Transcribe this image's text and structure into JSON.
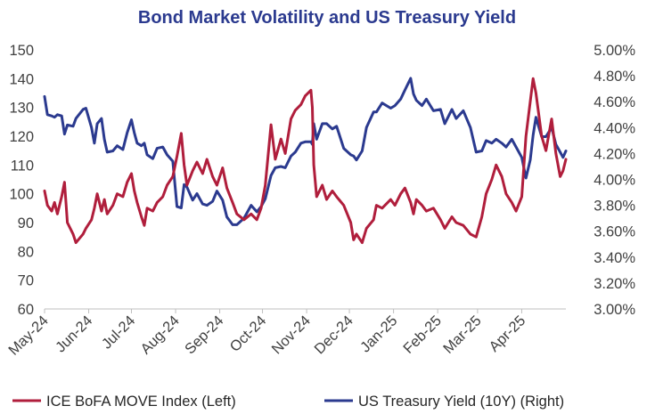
{
  "chart_data": {
    "type": "line",
    "title": "Bond Market Volatility and US Treasury Yield",
    "grid": false,
    "legend_position": "bottom",
    "x_tick_labels": [
      "May-24",
      "Jun-24",
      "Jul-24",
      "Aug-24",
      "Sep-24",
      "Oct-24",
      "Nov-24",
      "Dec-24",
      "Jan-25",
      "Feb-25",
      "Mar-25",
      "Apr-25"
    ],
    "left_axis": {
      "ylim": [
        60,
        150
      ],
      "ticks": [
        "60",
        "70",
        "80",
        "90",
        "100",
        "110",
        "120",
        "130",
        "140",
        "150"
      ]
    },
    "right_axis": {
      "ylim": [
        3.0,
        5.0
      ],
      "ticks": [
        "3.00%",
        "3.20%",
        "3.40%",
        "3.60%",
        "3.80%",
        "4.00%",
        "4.20%",
        "4.40%",
        "4.60%",
        "4.80%",
        "5.00%"
      ]
    },
    "colors": {
      "move": "#b01e3c",
      "yield": "#2b3a8f",
      "title": "#2b3a8f"
    },
    "series": [
      {
        "name": "ICE BoFA MOVE Index (Left)",
        "axis": "left",
        "points": [
          [
            "2024-05-01",
            101
          ],
          [
            "2024-05-03",
            96
          ],
          [
            "2024-05-06",
            94
          ],
          [
            "2024-05-08",
            97
          ],
          [
            "2024-05-10",
            93
          ],
          [
            "2024-05-13",
            99
          ],
          [
            "2024-05-15",
            104
          ],
          [
            "2024-05-17",
            90
          ],
          [
            "2024-05-21",
            86
          ],
          [
            "2024-05-23",
            83
          ],
          [
            "2024-05-28",
            86
          ],
          [
            "2024-05-30",
            88
          ],
          [
            "2024-06-03",
            91
          ],
          [
            "2024-06-05",
            95
          ],
          [
            "2024-06-07",
            100
          ],
          [
            "2024-06-10",
            94
          ],
          [
            "2024-06-12",
            98
          ],
          [
            "2024-06-14",
            93
          ],
          [
            "2024-06-18",
            96
          ],
          [
            "2024-06-21",
            100
          ],
          [
            "2024-06-25",
            99
          ],
          [
            "2024-06-28",
            104
          ],
          [
            "2024-07-01",
            107
          ],
          [
            "2024-07-03",
            101
          ],
          [
            "2024-07-05",
            97
          ],
          [
            "2024-07-08",
            92
          ],
          [
            "2024-07-10",
            89
          ],
          [
            "2024-07-12",
            95
          ],
          [
            "2024-07-16",
            94
          ],
          [
            "2024-07-19",
            97
          ],
          [
            "2024-07-23",
            99
          ],
          [
            "2024-07-26",
            103
          ],
          [
            "2024-07-30",
            106
          ],
          [
            "2024-08-02",
            113
          ],
          [
            "2024-08-05",
            121
          ],
          [
            "2024-08-07",
            110
          ],
          [
            "2024-08-09",
            103
          ],
          [
            "2024-08-13",
            108
          ],
          [
            "2024-08-16",
            111
          ],
          [
            "2024-08-20",
            107
          ],
          [
            "2024-08-23",
            112
          ],
          [
            "2024-08-27",
            106
          ],
          [
            "2024-08-30",
            103
          ],
          [
            "2024-09-03",
            109
          ],
          [
            "2024-09-06",
            102
          ],
          [
            "2024-09-10",
            97
          ],
          [
            "2024-09-13",
            93
          ],
          [
            "2024-09-18",
            91
          ],
          [
            "2024-09-23",
            93
          ],
          [
            "2024-09-27",
            91
          ],
          [
            "2024-09-30",
            95
          ],
          [
            "2024-10-03",
            103
          ],
          [
            "2024-10-07",
            124
          ],
          [
            "2024-10-10",
            112
          ],
          [
            "2024-10-14",
            119
          ],
          [
            "2024-10-17",
            114
          ],
          [
            "2024-10-21",
            126
          ],
          [
            "2024-10-24",
            129
          ],
          [
            "2024-10-28",
            131
          ],
          [
            "2024-10-31",
            134
          ],
          [
            "2024-11-04",
            136
          ],
          [
            "2024-11-05",
            130
          ],
          [
            "2024-11-06",
            110
          ],
          [
            "2024-11-08",
            99
          ],
          [
            "2024-11-12",
            103
          ],
          [
            "2024-11-15",
            98
          ],
          [
            "2024-11-19",
            101
          ],
          [
            "2024-11-22",
            99
          ],
          [
            "2024-11-27",
            96
          ],
          [
            "2024-12-02",
            90
          ],
          [
            "2024-12-04",
            84
          ],
          [
            "2024-12-06",
            86
          ],
          [
            "2024-12-10",
            83
          ],
          [
            "2024-12-13",
            88
          ],
          [
            "2024-12-18",
            91
          ],
          [
            "2024-12-20",
            96
          ],
          [
            "2024-12-24",
            95
          ],
          [
            "2024-12-30",
            98
          ],
          [
            "2025-01-02",
            96
          ],
          [
            "2025-01-06",
            100
          ],
          [
            "2025-01-09",
            102
          ],
          [
            "2025-01-13",
            97
          ],
          [
            "2025-01-15",
            93
          ],
          [
            "2025-01-17",
            98
          ],
          [
            "2025-01-21",
            96
          ],
          [
            "2025-01-24",
            94
          ],
          [
            "2025-01-29",
            95
          ],
          [
            "2025-02-03",
            91
          ],
          [
            "2025-02-06",
            88
          ],
          [
            "2025-02-11",
            92
          ],
          [
            "2025-02-14",
            90
          ],
          [
            "2025-02-19",
            89
          ],
          [
            "2025-02-24",
            86
          ],
          [
            "2025-02-28",
            85
          ],
          [
            "2025-03-04",
            92
          ],
          [
            "2025-03-07",
            100
          ],
          [
            "2025-03-11",
            105
          ],
          [
            "2025-03-14",
            110
          ],
          [
            "2025-03-18",
            106
          ],
          [
            "2025-03-21",
            100
          ],
          [
            "2025-03-25",
            97
          ],
          [
            "2025-03-28",
            94
          ],
          [
            "2025-04-01",
            99
          ],
          [
            "2025-04-04",
            120
          ],
          [
            "2025-04-07",
            132
          ],
          [
            "2025-04-09",
            140
          ],
          [
            "2025-04-11",
            135
          ],
          [
            "2025-04-15",
            120
          ],
          [
            "2025-04-18",
            115
          ],
          [
            "2025-04-22",
            126
          ],
          [
            "2025-04-25",
            114
          ],
          [
            "2025-04-28",
            106
          ],
          [
            "2025-04-30",
            108
          ],
          [
            "2025-05-02",
            112
          ]
        ]
      },
      {
        "name": "US Treasury Yield (10Y) (Right)",
        "axis": "right",
        "points": [
          [
            "2024-05-01",
            4.64
          ],
          [
            "2024-05-03",
            4.5
          ],
          [
            "2024-05-06",
            4.49
          ],
          [
            "2024-05-08",
            4.48
          ],
          [
            "2024-05-10",
            4.5
          ],
          [
            "2024-05-13",
            4.49
          ],
          [
            "2024-05-15",
            4.35
          ],
          [
            "2024-05-17",
            4.42
          ],
          [
            "2024-05-21",
            4.41
          ],
          [
            "2024-05-23",
            4.47
          ],
          [
            "2024-05-28",
            4.54
          ],
          [
            "2024-05-30",
            4.55
          ],
          [
            "2024-06-03",
            4.4
          ],
          [
            "2024-06-05",
            4.28
          ],
          [
            "2024-06-07",
            4.43
          ],
          [
            "2024-06-10",
            4.47
          ],
          [
            "2024-06-12",
            4.31
          ],
          [
            "2024-06-14",
            4.21
          ],
          [
            "2024-06-18",
            4.22
          ],
          [
            "2024-06-21",
            4.26
          ],
          [
            "2024-06-25",
            4.23
          ],
          [
            "2024-06-28",
            4.36
          ],
          [
            "2024-07-01",
            4.46
          ],
          [
            "2024-07-03",
            4.36
          ],
          [
            "2024-07-05",
            4.28
          ],
          [
            "2024-07-08",
            4.26
          ],
          [
            "2024-07-10",
            4.28
          ],
          [
            "2024-07-12",
            4.19
          ],
          [
            "2024-07-16",
            4.16
          ],
          [
            "2024-07-19",
            4.24
          ],
          [
            "2024-07-23",
            4.25
          ],
          [
            "2024-07-26",
            4.19
          ],
          [
            "2024-07-30",
            4.14
          ],
          [
            "2024-08-02",
            3.79
          ],
          [
            "2024-08-05",
            3.78
          ],
          [
            "2024-08-07",
            3.96
          ],
          [
            "2024-08-09",
            3.94
          ],
          [
            "2024-08-13",
            3.84
          ],
          [
            "2024-08-16",
            3.89
          ],
          [
            "2024-08-20",
            3.81
          ],
          [
            "2024-08-23",
            3.8
          ],
          [
            "2024-08-27",
            3.83
          ],
          [
            "2024-08-30",
            3.91
          ],
          [
            "2024-09-03",
            3.84
          ],
          [
            "2024-09-06",
            3.71
          ],
          [
            "2024-09-10",
            3.65
          ],
          [
            "2024-09-13",
            3.65
          ],
          [
            "2024-09-18",
            3.7
          ],
          [
            "2024-09-23",
            3.8
          ],
          [
            "2024-09-27",
            3.75
          ],
          [
            "2024-09-30",
            3.79
          ],
          [
            "2024-10-03",
            3.85
          ],
          [
            "2024-10-07",
            4.03
          ],
          [
            "2024-10-10",
            4.09
          ],
          [
            "2024-10-14",
            4.1
          ],
          [
            "2024-10-17",
            4.09
          ],
          [
            "2024-10-21",
            4.18
          ],
          [
            "2024-10-24",
            4.21
          ],
          [
            "2024-10-28",
            4.28
          ],
          [
            "2024-10-31",
            4.29
          ],
          [
            "2024-11-04",
            4.29
          ],
          [
            "2024-11-05",
            4.27
          ],
          [
            "2024-11-06",
            4.43
          ],
          [
            "2024-11-08",
            4.31
          ],
          [
            "2024-11-12",
            4.43
          ],
          [
            "2024-11-15",
            4.43
          ],
          [
            "2024-11-19",
            4.39
          ],
          [
            "2024-11-22",
            4.41
          ],
          [
            "2024-11-27",
            4.24
          ],
          [
            "2024-12-02",
            4.19
          ],
          [
            "2024-12-04",
            4.18
          ],
          [
            "2024-12-06",
            4.15
          ],
          [
            "2024-12-10",
            4.22
          ],
          [
            "2024-12-13",
            4.4
          ],
          [
            "2024-12-18",
            4.52
          ],
          [
            "2024-12-20",
            4.52
          ],
          [
            "2024-12-24",
            4.59
          ],
          [
            "2024-12-30",
            4.55
          ],
          [
            "2025-01-02",
            4.57
          ],
          [
            "2025-01-06",
            4.62
          ],
          [
            "2025-01-09",
            4.69
          ],
          [
            "2025-01-13",
            4.78
          ],
          [
            "2025-01-15",
            4.66
          ],
          [
            "2025-01-17",
            4.61
          ],
          [
            "2025-01-21",
            4.57
          ],
          [
            "2025-01-24",
            4.62
          ],
          [
            "2025-01-29",
            4.53
          ],
          [
            "2025-02-03",
            4.54
          ],
          [
            "2025-02-06",
            4.43
          ],
          [
            "2025-02-11",
            4.54
          ],
          [
            "2025-02-14",
            4.47
          ],
          [
            "2025-02-19",
            4.53
          ],
          [
            "2025-02-24",
            4.4
          ],
          [
            "2025-02-28",
            4.21
          ],
          [
            "2025-03-04",
            4.22
          ],
          [
            "2025-03-07",
            4.3
          ],
          [
            "2025-03-11",
            4.28
          ],
          [
            "2025-03-14",
            4.31
          ],
          [
            "2025-03-18",
            4.28
          ],
          [
            "2025-03-21",
            4.25
          ],
          [
            "2025-03-25",
            4.31
          ],
          [
            "2025-03-28",
            4.25
          ],
          [
            "2025-04-01",
            4.17
          ],
          [
            "2025-04-04",
            4.01
          ],
          [
            "2025-04-07",
            4.15
          ],
          [
            "2025-04-09",
            4.34
          ],
          [
            "2025-04-11",
            4.48
          ],
          [
            "2025-04-15",
            4.33
          ],
          [
            "2025-04-18",
            4.33
          ],
          [
            "2025-04-22",
            4.4
          ],
          [
            "2025-04-25",
            4.27
          ],
          [
            "2025-04-28",
            4.21
          ],
          [
            "2025-04-30",
            4.17
          ],
          [
            "2025-05-02",
            4.22
          ]
        ]
      }
    ]
  }
}
